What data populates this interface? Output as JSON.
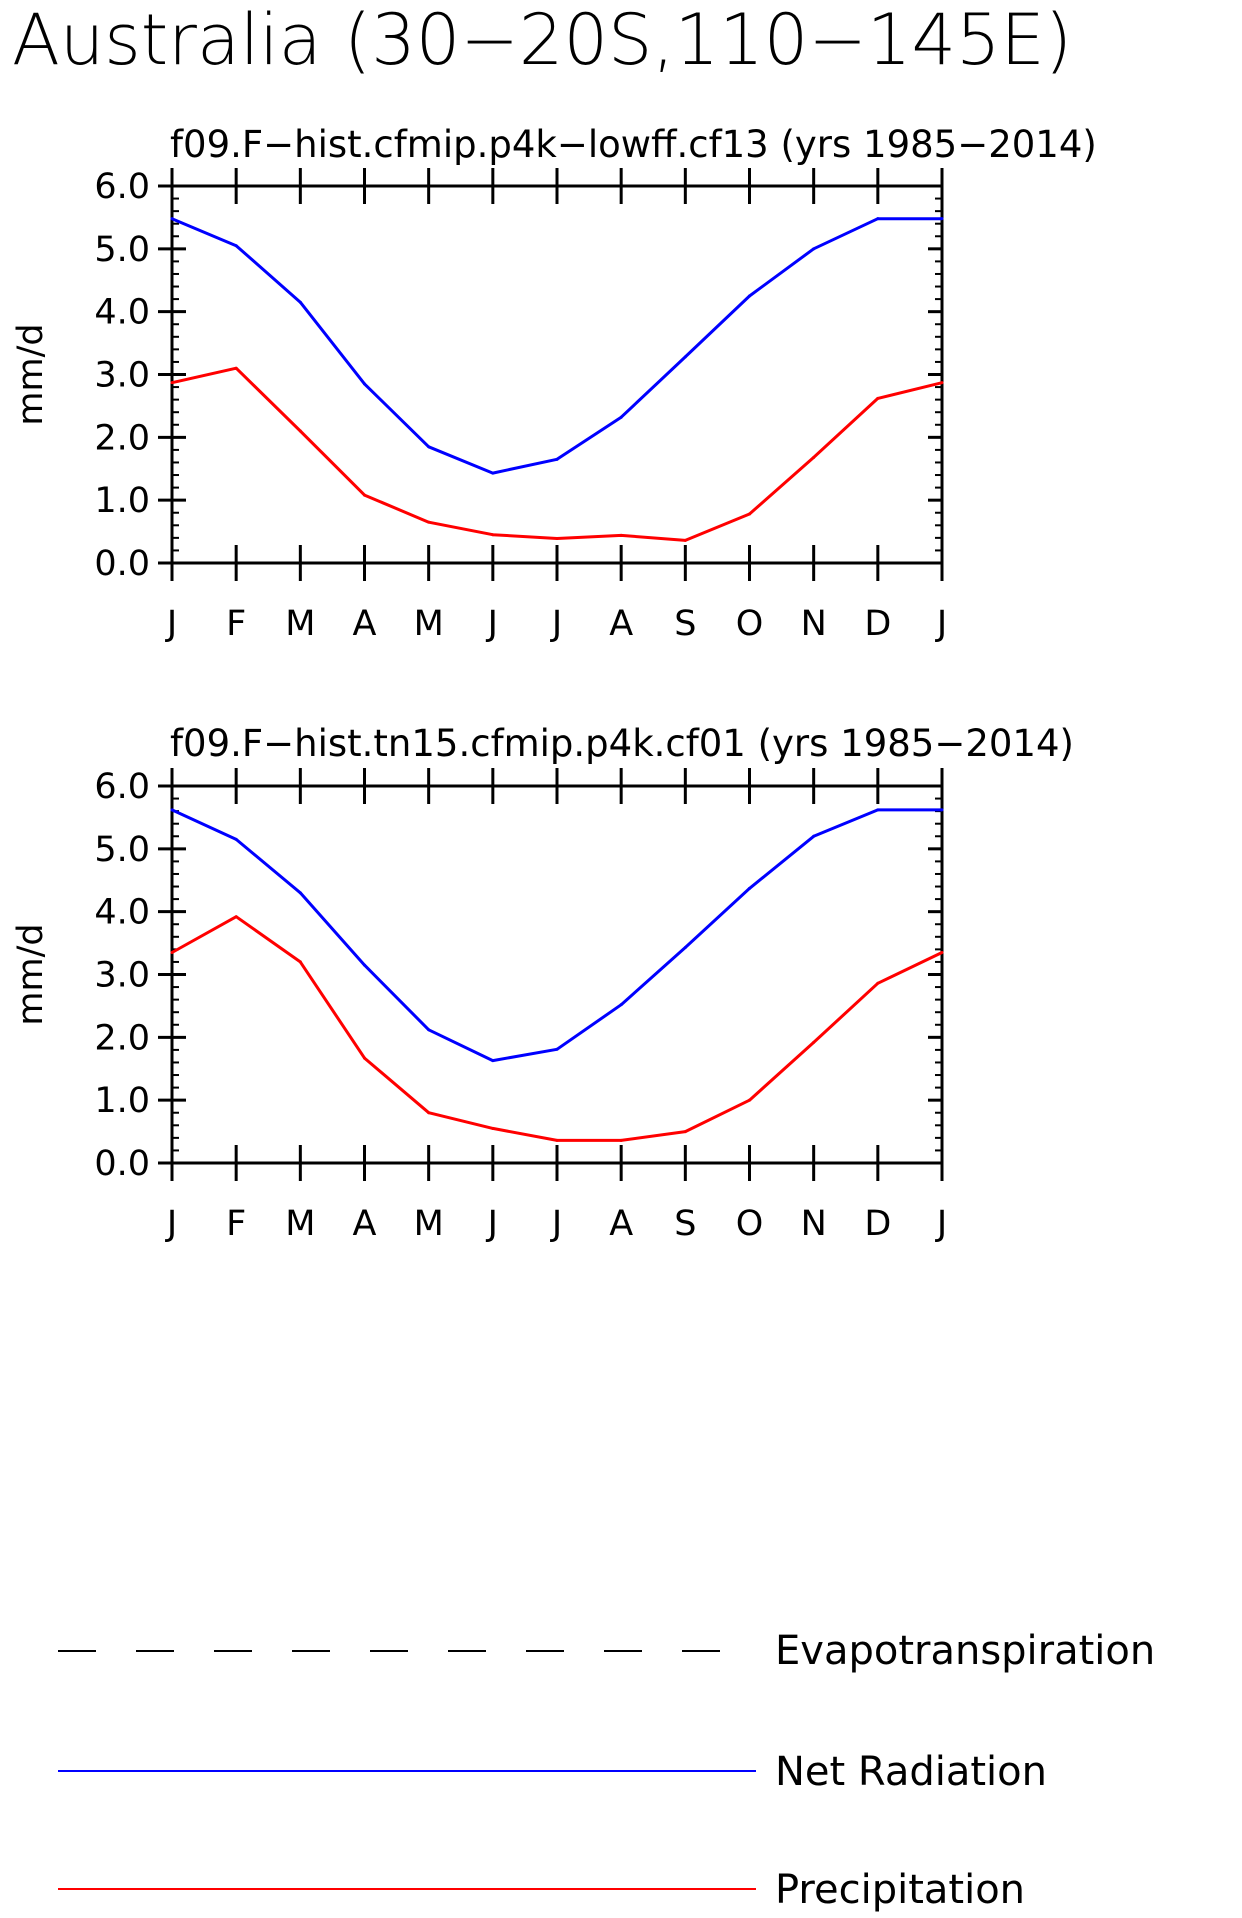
{
  "title": "Australia (30−20S,110−145E)",
  "colors": {
    "net_radiation": "#0000ff",
    "precipitation": "#ff0000",
    "evapotranspiration": "#000000",
    "axes": "#000000"
  },
  "legend": {
    "placement": "bottom",
    "items": [
      {
        "label": "Evapotranspiration",
        "style": "dashed",
        "color": "#000000"
      },
      {
        "label": "Net Radiation",
        "style": "solid",
        "color": "#0000ff"
      },
      {
        "label": "Precipitation",
        "style": "solid",
        "color": "#ff0000"
      }
    ]
  },
  "chart_data": [
    {
      "type": "line",
      "title": "f09.F−hist.cfmip.p4k−lowff.cf13 (yrs 1985−2014)",
      "ylabel": "mm/d",
      "xlabel": "",
      "ylim": [
        0,
        6
      ],
      "yticks": [
        "0.0",
        "1.0",
        "2.0",
        "3.0",
        "4.0",
        "5.0",
        "6.0"
      ],
      "categories": [
        "J",
        "F",
        "M",
        "A",
        "M",
        "J",
        "J",
        "A",
        "S",
        "O",
        "N",
        "D",
        "J"
      ],
      "series": [
        {
          "name": "Net Radiation",
          "color": "#0000ff",
          "values": [
            5.48,
            5.05,
            4.15,
            2.85,
            1.85,
            1.43,
            1.65,
            2.32,
            3.28,
            4.25,
            5.0,
            5.48,
            5.48
          ]
        },
        {
          "name": "Precipitation",
          "color": "#ff0000",
          "values": [
            2.87,
            3.1,
            2.1,
            1.08,
            0.65,
            0.45,
            0.39,
            0.44,
            0.36,
            0.78,
            1.68,
            2.62,
            2.87
          ]
        }
      ]
    },
    {
      "type": "line",
      "title": "f09.F−hist.tn15.cfmip.p4k.cf01 (yrs 1985−2014)",
      "ylabel": "mm/d",
      "xlabel": "",
      "ylim": [
        0,
        6
      ],
      "yticks": [
        "0.0",
        "1.0",
        "2.0",
        "3.0",
        "4.0",
        "5.0",
        "6.0"
      ],
      "categories": [
        "J",
        "F",
        "M",
        "A",
        "M",
        "J",
        "J",
        "A",
        "S",
        "O",
        "N",
        "D",
        "J"
      ],
      "series": [
        {
          "name": "Net Radiation",
          "color": "#0000ff",
          "values": [
            5.62,
            5.15,
            4.3,
            3.15,
            2.12,
            1.63,
            1.81,
            2.52,
            3.43,
            4.37,
            5.2,
            5.62,
            5.62
          ]
        },
        {
          "name": "Precipitation",
          "color": "#ff0000",
          "values": [
            3.35,
            3.92,
            3.2,
            1.67,
            0.8,
            0.55,
            0.36,
            0.36,
            0.5,
            1.0,
            1.92,
            2.86,
            3.35
          ]
        }
      ]
    }
  ]
}
